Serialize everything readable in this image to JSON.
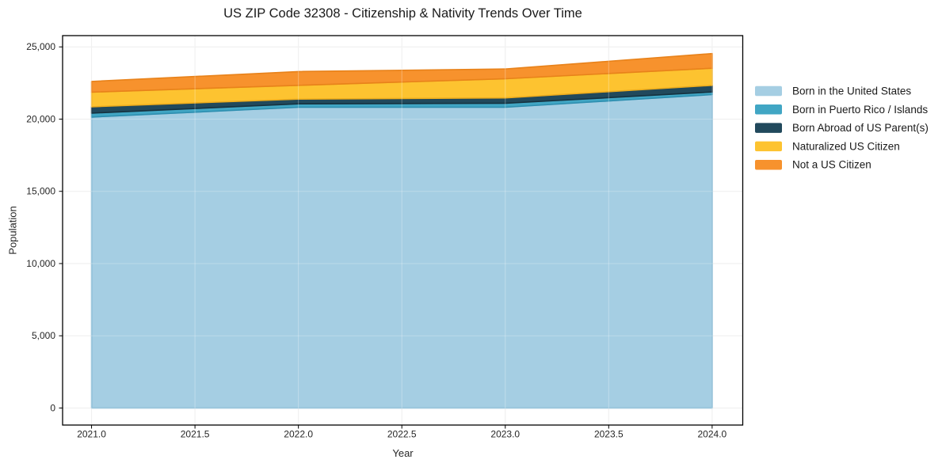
{
  "figure": {
    "background": "#ffffff",
    "spine_color": "#000000",
    "grid_color": "#e9e9e9",
    "tick_label_color": "#262626",
    "text_color": "#1a1a1a"
  },
  "chart_data": {
    "type": "area",
    "stacked": true,
    "title": "US ZIP Code 32308 - Citizenship & Nativity Trends Over Time",
    "xlabel": "Year",
    "ylabel": "Population",
    "x": [
      2021,
      2022,
      2023,
      2024
    ],
    "series": [
      {
        "name": "Born in the United States",
        "color": "#a5cee3",
        "edge_color": "#7eb4d0",
        "values": [
          20140,
          20820,
          20820,
          21700
        ]
      },
      {
        "name": "Born in Puerto Rico / Islands",
        "color": "#41a6c4",
        "edge_color": "#2e8fb0",
        "values": [
          275,
          235,
          275,
          180
        ]
      },
      {
        "name": "Born Abroad of US Parent(s)",
        "color": "#21495c",
        "edge_color": "#16323f",
        "values": [
          440,
          330,
          370,
          460
        ]
      },
      {
        "name": "Naturalized US Citizen",
        "color": "#fdc330",
        "edge_color": "#eead1d",
        "values": [
          1015,
          955,
          1330,
          1185
        ]
      },
      {
        "name": "Not a US Citizen",
        "color": "#f7922d",
        "edge_color": "#e8821a",
        "values": [
          740,
          950,
          675,
          1010
        ]
      }
    ],
    "totals": [
      22610,
      23290,
      23470,
      24535
    ],
    "xlim": [
      2020.86,
      2024.148
    ],
    "ylim": [
      -1180,
      25780
    ],
    "xticks": {
      "values": [
        2021.0,
        2021.5,
        2022.0,
        2022.5,
        2023.0,
        2023.5,
        2024.0
      ],
      "labels": [
        "2021.0",
        "2021.5",
        "2022.0",
        "2022.5",
        "2023.0",
        "2023.5",
        "2024.0"
      ]
    },
    "yticks": {
      "values": [
        0,
        5000,
        10000,
        15000,
        20000,
        25000
      ],
      "labels": [
        "0",
        "5,000",
        "10,000",
        "15,000",
        "20,000",
        "25,000"
      ]
    },
    "grid": true,
    "legend_position": "right-outside"
  }
}
